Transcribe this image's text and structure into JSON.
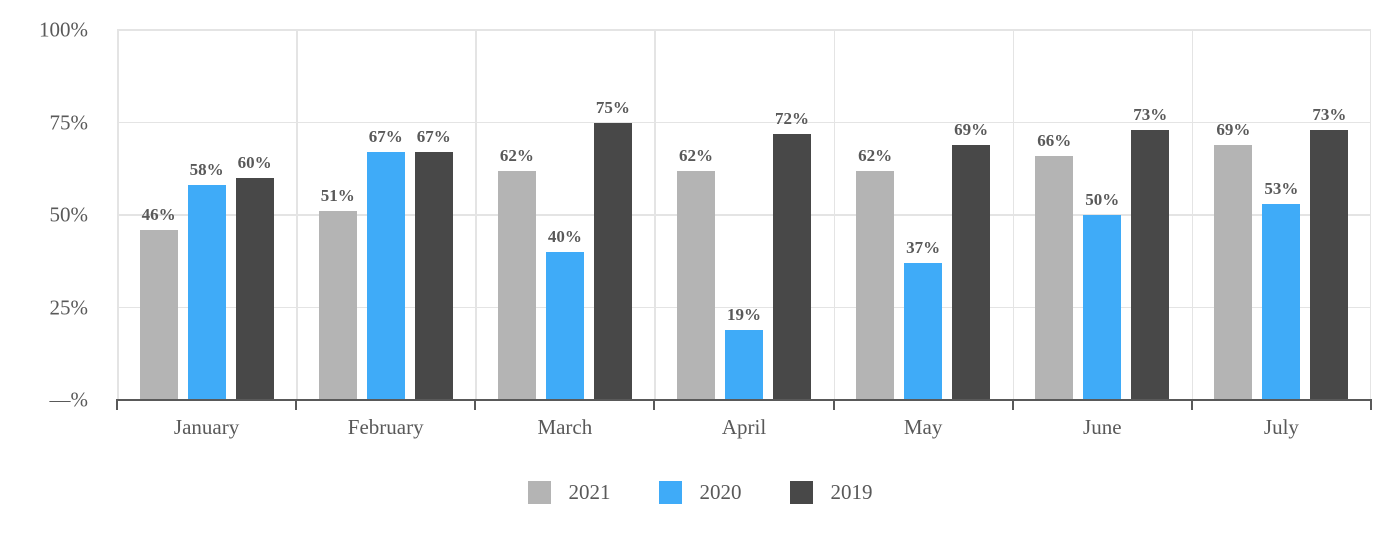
{
  "chart_data": {
    "type": "bar",
    "title": "",
    "xlabel": "",
    "ylabel": "",
    "categories": [
      "January",
      "February",
      "March",
      "April",
      "May",
      "June",
      "July"
    ],
    "series": [
      {
        "name": "2021",
        "color": "#b4b4b4",
        "values": [
          46,
          51,
          62,
          62,
          62,
          66,
          69
        ]
      },
      {
        "name": "2020",
        "color": "#3fabf8",
        "values": [
          58,
          67,
          40,
          19,
          37,
          50,
          53
        ]
      },
      {
        "name": "2019",
        "color": "#484848",
        "values": [
          60,
          67,
          75,
          72,
          69,
          73,
          73
        ]
      }
    ],
    "value_suffix": "%",
    "data_labels": true,
    "ylim": [
      0,
      100
    ],
    "y_ticks": [
      {
        "label": "100%",
        "value": 100
      },
      {
        "label": "75%",
        "value": 75
      },
      {
        "label": "50%",
        "value": 50
      },
      {
        "label": "25%",
        "value": 25
      },
      {
        "label": "—%",
        "value": 0
      }
    ],
    "grid": true,
    "legend_position": "bottom"
  },
  "colors": {
    "axis": "#595959",
    "gridline": "#e4e4e4",
    "text": "#595959",
    "background": "#ffffff"
  }
}
